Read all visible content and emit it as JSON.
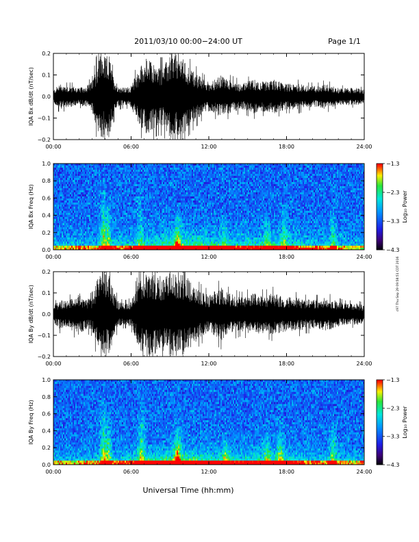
{
  "page": {
    "title": "2011/03/10   00:00−24:00 UT",
    "page_label": "Page 1/1",
    "xlabel": "Universal Time (hh:mm)",
    "side_note": "c97 Thu Sep 29 09:58:51 CDT 2016"
  },
  "chart_data": [
    {
      "type": "line",
      "ylabel": "IQA Bx dB/dt (nT/sec)",
      "xlim": [
        0,
        24
      ],
      "ylim": [
        -0.2,
        0.2
      ],
      "x_ticks": [
        "00:00",
        "06:00",
        "12:00",
        "18:00",
        "24:00"
      ],
      "y_ticks": [
        "0.2",
        "0.1",
        "0.0",
        "−0.1",
        "−0.2"
      ],
      "series_color": "#000000",
      "envelope": {
        "x": [
          0,
          0.5,
          1.0,
          1.5,
          2.0,
          2.5,
          3.0,
          3.3,
          3.6,
          3.8,
          4.0,
          4.3,
          4.6,
          5.0,
          5.5,
          6.0,
          6.5,
          6.8,
          7.2,
          7.6,
          8.0,
          8.5,
          9.0,
          9.4,
          9.8,
          10.3,
          10.8,
          11.2,
          11.6,
          12.0,
          12.5,
          13.0,
          13.5,
          14.0,
          14.5,
          15.0,
          15.5,
          16.0,
          16.5,
          17.0,
          17.5,
          18.0,
          18.5,
          19.0,
          19.5,
          20.0,
          20.5,
          21.0,
          21.5,
          22.0,
          22.5,
          23.0,
          23.5,
          24.0
        ],
        "amplitude": [
          0.03,
          0.06,
          0.05,
          0.05,
          0.04,
          0.05,
          0.07,
          0.14,
          0.2,
          0.2,
          0.18,
          0.2,
          0.1,
          0.05,
          0.04,
          0.05,
          0.12,
          0.15,
          0.18,
          0.16,
          0.14,
          0.14,
          0.19,
          0.2,
          0.2,
          0.15,
          0.12,
          0.1,
          0.08,
          0.07,
          0.08,
          0.1,
          0.08,
          0.07,
          0.06,
          0.07,
          0.08,
          0.07,
          0.07,
          0.08,
          0.07,
          0.06,
          0.06,
          0.06,
          0.05,
          0.05,
          0.05,
          0.06,
          0.05,
          0.04,
          0.04,
          0.04,
          0.04,
          0.03
        ]
      }
    },
    {
      "type": "heatmap",
      "ylabel": "IQA Bx Freq (Hz)",
      "xlim": [
        0,
        24
      ],
      "ylim": [
        0,
        1.0
      ],
      "x_ticks": [
        "00:00",
        "06:00",
        "12:00",
        "18:00",
        "24:00"
      ],
      "y_ticks": [
        "1.0",
        "0.8",
        "0.6",
        "0.4",
        "0.2",
        "0.0"
      ],
      "colorbar": {
        "label": "Log₁₀ Power",
        "range": [
          -4.3,
          -1.3
        ],
        "ticks": [
          "−1.3",
          "−2.3",
          "−3.3",
          "−4.3"
        ]
      },
      "bursts": [
        {
          "t": 3.9,
          "strength": 0.9,
          "height": 0.9
        },
        {
          "t": 4.2,
          "strength": 0.8,
          "height": 0.7
        },
        {
          "t": 6.7,
          "strength": 0.4,
          "height": 0.9
        },
        {
          "t": 9.6,
          "strength": 0.9,
          "height": 0.5
        },
        {
          "t": 13.2,
          "strength": 0.5,
          "height": 0.4
        },
        {
          "t": 16.5,
          "strength": 0.5,
          "height": 0.5
        },
        {
          "t": 17.8,
          "strength": 0.6,
          "height": 0.6
        },
        {
          "t": 21.6,
          "strength": 0.6,
          "height": 0.6
        }
      ]
    },
    {
      "type": "line",
      "ylabel": "IQA By dB/dt (nT/sec)",
      "xlim": [
        0,
        24
      ],
      "ylim": [
        -0.2,
        0.2
      ],
      "x_ticks": [
        "00:00",
        "06:00",
        "12:00",
        "18:00",
        "24:00"
      ],
      "y_ticks": [
        "0.2",
        "0.1",
        "0.0",
        "−0.1",
        "−0.2"
      ],
      "series_color": "#000000",
      "envelope": {
        "x": [
          0,
          0.5,
          1.0,
          1.5,
          2.0,
          2.5,
          3.0,
          3.3,
          3.6,
          3.8,
          4.0,
          4.3,
          4.6,
          5.0,
          5.5,
          6.0,
          6.5,
          6.8,
          7.2,
          7.6,
          8.0,
          8.5,
          9.0,
          9.4,
          9.8,
          10.3,
          10.8,
          11.2,
          11.6,
          12.0,
          12.5,
          13.0,
          13.5,
          14.0,
          14.5,
          15.0,
          15.5,
          16.0,
          16.5,
          17.0,
          17.5,
          18.0,
          18.5,
          19.0,
          19.5,
          20.0,
          20.5,
          21.0,
          21.5,
          22.0,
          22.5,
          23.0,
          23.5,
          24.0
        ],
        "amplitude": [
          0.04,
          0.07,
          0.06,
          0.08,
          0.1,
          0.07,
          0.08,
          0.15,
          0.2,
          0.2,
          0.2,
          0.2,
          0.12,
          0.06,
          0.05,
          0.06,
          0.14,
          0.18,
          0.2,
          0.2,
          0.18,
          0.18,
          0.2,
          0.2,
          0.2,
          0.18,
          0.14,
          0.12,
          0.1,
          0.09,
          0.11,
          0.13,
          0.1,
          0.09,
          0.08,
          0.09,
          0.1,
          0.09,
          0.09,
          0.1,
          0.09,
          0.08,
          0.08,
          0.08,
          0.07,
          0.07,
          0.07,
          0.08,
          0.07,
          0.06,
          0.05,
          0.05,
          0.05,
          0.04
        ]
      }
    },
    {
      "type": "heatmap",
      "ylabel": "IQA By Freq (Hz)",
      "xlim": [
        0,
        24
      ],
      "ylim": [
        0,
        1.0
      ],
      "x_ticks": [
        "00:00",
        "06:00",
        "12:00",
        "18:00",
        "24:00"
      ],
      "y_ticks": [
        "1.0",
        "0.8",
        "0.6",
        "0.4",
        "0.2",
        "0.0"
      ],
      "colorbar": {
        "label": "Log₁₀ Power",
        "range": [
          -4.3,
          -1.3
        ],
        "ticks": [
          "−1.3",
          "−2.3",
          "−3.3",
          "−4.3"
        ]
      },
      "bursts": [
        {
          "t": 3.9,
          "strength": 0.9,
          "height": 0.9
        },
        {
          "t": 4.2,
          "strength": 0.8,
          "height": 0.7
        },
        {
          "t": 6.8,
          "strength": 0.7,
          "height": 0.9
        },
        {
          "t": 9.6,
          "strength": 1.0,
          "height": 0.6
        },
        {
          "t": 13.3,
          "strength": 0.7,
          "height": 0.4
        },
        {
          "t": 16.5,
          "strength": 0.6,
          "height": 0.5
        },
        {
          "t": 17.5,
          "strength": 0.7,
          "height": 0.6
        },
        {
          "t": 21.6,
          "strength": 0.7,
          "height": 0.6
        }
      ]
    }
  ]
}
